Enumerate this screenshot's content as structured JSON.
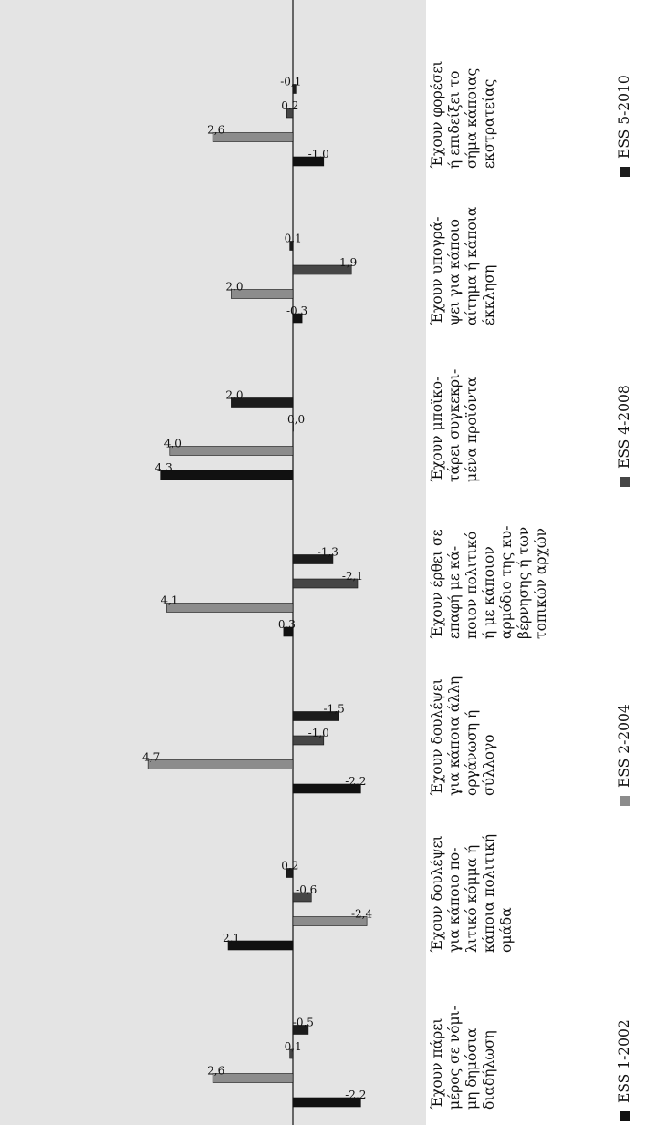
{
  "chart_data": {
    "type": "bar",
    "orientation": "vertical",
    "categories": [
      [
        "Έχουν πάρει",
        "μέρος σε νόμι-",
        "μη δημόσια",
        "διαδήλωση"
      ],
      [
        "Έχουν δουλέψει",
        "για κάποιο πο-",
        "λιτικό κόμμα ή",
        "κάποια πολιτική",
        "ομάδα"
      ],
      [
        "Έχουν δουλέψει",
        "για κάποια άλλη",
        "οργάνωση ή",
        "σύλλογο"
      ],
      [
        "Έχουν έρθει σε",
        "επαφή με κά-",
        "ποιον πολιτικό",
        "ή με κάποιον",
        "αρμόδιο της κυ-",
        "βέρνησης ή των",
        "τοπικών αρχών"
      ],
      [
        "Έχουν μποϊκο-",
        "τάρει συγκεκρι-",
        "μένα προϊόντα"
      ],
      [
        "Έχουν υπογρά-",
        "ψει για κάποιο",
        "αίτημα ή κάποια",
        "έκκληση"
      ],
      [
        "Έχουν φορέσει",
        "ή επιδείξει το",
        "σήμα κάποιας",
        "εκστρατείας"
      ]
    ],
    "series": [
      {
        "name": "ESS 1-2002",
        "color": "#111111",
        "values": [
          -2.2,
          2.1,
          -2.2,
          0.3,
          4.3,
          -0.3,
          -1.0
        ],
        "labels": [
          "-2,2",
          "2,1",
          "-2,2",
          "0,3",
          "4,3",
          "-0,3",
          "-1,0"
        ]
      },
      {
        "name": "ESS 2-2004",
        "color": "#8c8c8c",
        "values": [
          2.6,
          -2.4,
          4.7,
          4.1,
          4.0,
          2.0,
          2.6
        ],
        "labels": [
          "2,6",
          "-2,4",
          "4,7",
          "4,1",
          "4,0",
          "2.0",
          "2,6"
        ]
      },
      {
        "name": "ESS 4-2008",
        "color": "#464646",
        "values": [
          0.1,
          -0.6,
          -1.0,
          -2.1,
          0.0,
          -1.9,
          0.2
        ],
        "labels": [
          "0,1",
          "-0,6",
          "-1,0",
          "-2,1",
          "0,0",
          "-1,9",
          "0.2"
        ]
      },
      {
        "name": "ESS 5-2010",
        "color": "#1c1c1c",
        "values": [
          -0.5,
          0.2,
          -1.5,
          -1.3,
          2.0,
          0.1,
          -0.1
        ],
        "labels": [
          "-0,5",
          "0,2",
          "-1,5",
          "-1,3",
          "2.0",
          "0.1",
          "-0,1"
        ]
      }
    ],
    "ylim": [
      -3,
      5.5
    ],
    "grid": false,
    "legend_position": "bottom",
    "title": "",
    "xlabel": "",
    "ylabel": ""
  }
}
